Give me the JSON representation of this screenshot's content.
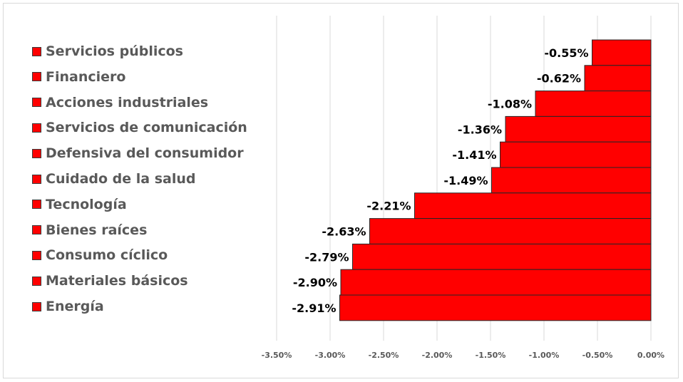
{
  "chart_data": {
    "type": "bar",
    "orientation": "horizontal",
    "categories": [
      "Servicios públicos",
      "Financiero",
      "Acciones industriales",
      "Servicios de comunicación",
      "Defensiva del consumidor",
      "Cuidado de la salud",
      "Tecnología",
      "Bienes raíces",
      "Consumo cíclico",
      "Materiales básicos",
      "Energía"
    ],
    "values": [
      -0.55,
      -0.62,
      -1.08,
      -1.36,
      -1.41,
      -1.49,
      -2.21,
      -2.63,
      -2.79,
      -2.9,
      -2.91
    ],
    "data_labels": [
      "-0.55%",
      "-0.62%",
      "-1.08%",
      "-1.36%",
      "-1.41%",
      "-1.49%",
      "-2.21%",
      "-2.63%",
      "-2.79%",
      "-2.90%",
      "-2.91%"
    ],
    "xlim": [
      -3.5,
      0
    ],
    "x_ticks": [
      -3.5,
      -3.0,
      -2.5,
      -2.0,
      -1.5,
      -1.0,
      -0.5,
      0
    ],
    "x_tick_labels": [
      "-3.50%",
      "-3.00%",
      "-2.50%",
      "-2.00%",
      "-1.50%",
      "-1.00%",
      "-0.50%",
      "0.00%"
    ],
    "grid": true,
    "legend": "left",
    "title": "",
    "xlabel": "",
    "ylabel": "",
    "bar_color": "#ff0000"
  }
}
